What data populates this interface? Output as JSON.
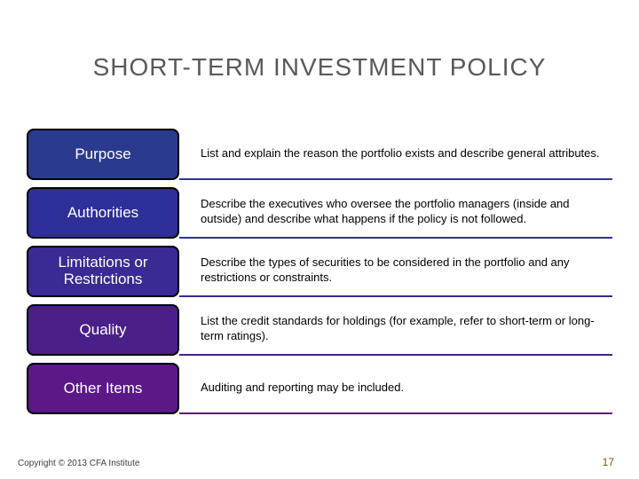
{
  "title": "SHORT-TERM INVESTMENT POLICY",
  "rows": [
    {
      "label": "Purpose",
      "pill_bg": "#2a3a8f",
      "rule_color": "#2a3a8f",
      "desc": "List and explain the reason the portfolio exists and describe general attributes."
    },
    {
      "label": "Authorities",
      "pill_bg": "#2e2f99",
      "rule_color": "#2e2f99",
      "desc": "Describe the executives who oversee the portfolio managers (inside and outside) and describe what happens if the policy is not followed."
    },
    {
      "label": "Limitations or\nRestrictions",
      "pill_bg": "#3a2a94",
      "rule_color": "#3a2a94",
      "desc": "Describe the types of securities to be considered in the portfolio and any restrictions or constraints."
    },
    {
      "label": "Quality",
      "pill_bg": "#4a1f8a",
      "rule_color": "#4a1f8a",
      "desc": "List the credit standards for holdings (for example, refer to short-term or long-term ratings)."
    },
    {
      "label": "Other Items",
      "pill_bg": "#5b1886",
      "rule_color": "#5b1886",
      "desc": "Auditing and reporting may be included."
    }
  ],
  "footer": "Copyright © 2013 CFA Institute",
  "page_number": "17"
}
